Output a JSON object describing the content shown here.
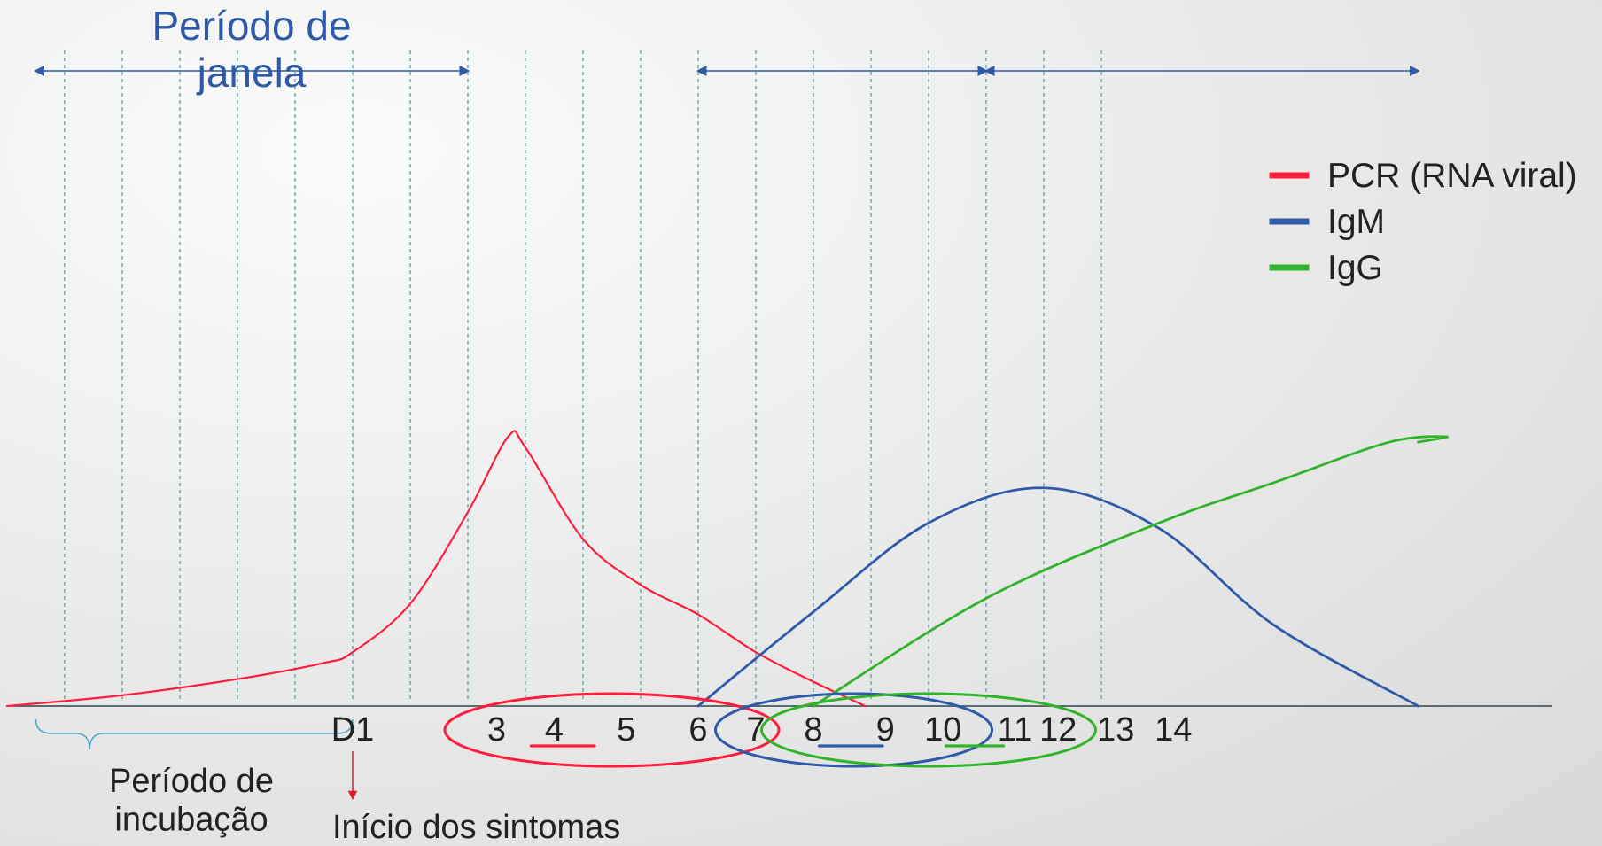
{
  "chart_data": {
    "type": "line",
    "title": "",
    "legend": {
      "placement": "top-right",
      "entries": [
        {
          "label": "PCR (RNA viral)",
          "color": "#ff1f3d"
        },
        {
          "label": "IgM",
          "color": "#2f5aa8"
        },
        {
          "label": "IgG",
          "color": "#31b42b"
        }
      ]
    },
    "x_ticks": [
      {
        "label": "D1",
        "x": 0
      },
      {
        "label": "3",
        "x": 2.5
      },
      {
        "label": "4",
        "x": 3.5
      },
      {
        "label": "5",
        "x": 4.75
      },
      {
        "label": "6",
        "x": 6
      },
      {
        "label": "7",
        "x": 7
      },
      {
        "label": "8",
        "x": 8
      },
      {
        "label": "9",
        "x": 9.25
      },
      {
        "label": "10",
        "x": 10.25
      },
      {
        "label": "11",
        "x": 11.5
      },
      {
        "label": "12",
        "x": 12.25
      },
      {
        "label": "13",
        "x": 13.25
      },
      {
        "label": "14",
        "x": 14.25
      }
    ],
    "gridlines_x": [
      -5,
      -4,
      -3,
      -2,
      -1,
      0,
      1,
      2,
      3,
      4,
      5,
      6,
      7,
      8,
      9,
      10,
      11,
      12,
      13
    ],
    "series": [
      {
        "name": "PCR (RNA viral)",
        "color": "#ff1f3d",
        "curve": "smooth",
        "points": [
          [
            -6,
            0
          ],
          [
            -4,
            4
          ],
          [
            -2,
            10
          ],
          [
            -0.5,
            16
          ],
          [
            0,
            20
          ],
          [
            1,
            38
          ],
          [
            2,
            72
          ],
          [
            2.7,
            100
          ],
          [
            3,
            96
          ],
          [
            4,
            62
          ],
          [
            5,
            45
          ],
          [
            6,
            34
          ],
          [
            7,
            20
          ],
          [
            8,
            9
          ],
          [
            8.9,
            0
          ]
        ]
      },
      {
        "name": "IgM",
        "color": "#2f5aa8",
        "curve": "smooth",
        "points": [
          [
            6,
            0
          ],
          [
            8,
            35
          ],
          [
            10,
            68
          ],
          [
            12,
            81
          ],
          [
            14,
            66
          ],
          [
            16,
            30
          ],
          [
            18.5,
            0
          ]
        ]
      },
      {
        "name": "IgG",
        "color": "#31b42b",
        "curve": "smooth",
        "points": [
          [
            8,
            0
          ],
          [
            11,
            40
          ],
          [
            14,
            68
          ],
          [
            16,
            83
          ],
          [
            18,
            98
          ],
          [
            19,
            100
          ],
          [
            18.5,
            98
          ]
        ]
      }
    ],
    "annotations": [
      {
        "type": "double-arrow",
        "from": -5.5,
        "to": 2,
        "text": "Período de janela"
      },
      {
        "type": "double-arrow",
        "from": 6,
        "to": 11
      },
      {
        "type": "double-arrow",
        "from": 11,
        "to": 18.5
      },
      {
        "type": "brace",
        "from": -5.5,
        "to": 0,
        "text": "Período de incubação"
      },
      {
        "type": "arrow-down",
        "at": 0,
        "text": "Início dos sintomas"
      }
    ],
    "ellipses": [
      {
        "color": "#ff1f3d",
        "center_x": 4.5,
        "rx": 2.9
      },
      {
        "color": "#2f5aa8",
        "center_x": 8.7,
        "rx": 2.4
      },
      {
        "color": "#31b42b",
        "center_x": 10.0,
        "rx": 2.9
      }
    ],
    "underlines": [
      {
        "color": "#ff1f3d",
        "from": 3.1,
        "to": 4.2
      },
      {
        "color": "#2f5aa8",
        "from": 8.1,
        "to": 9.2
      },
      {
        "color": "#31b42b",
        "from": 10.3,
        "to": 11.3
      }
    ]
  },
  "labels": {
    "window_title": "Período de\njanela",
    "incubation": "Período de\nincubação",
    "symptoms": "Início dos sintomas"
  }
}
